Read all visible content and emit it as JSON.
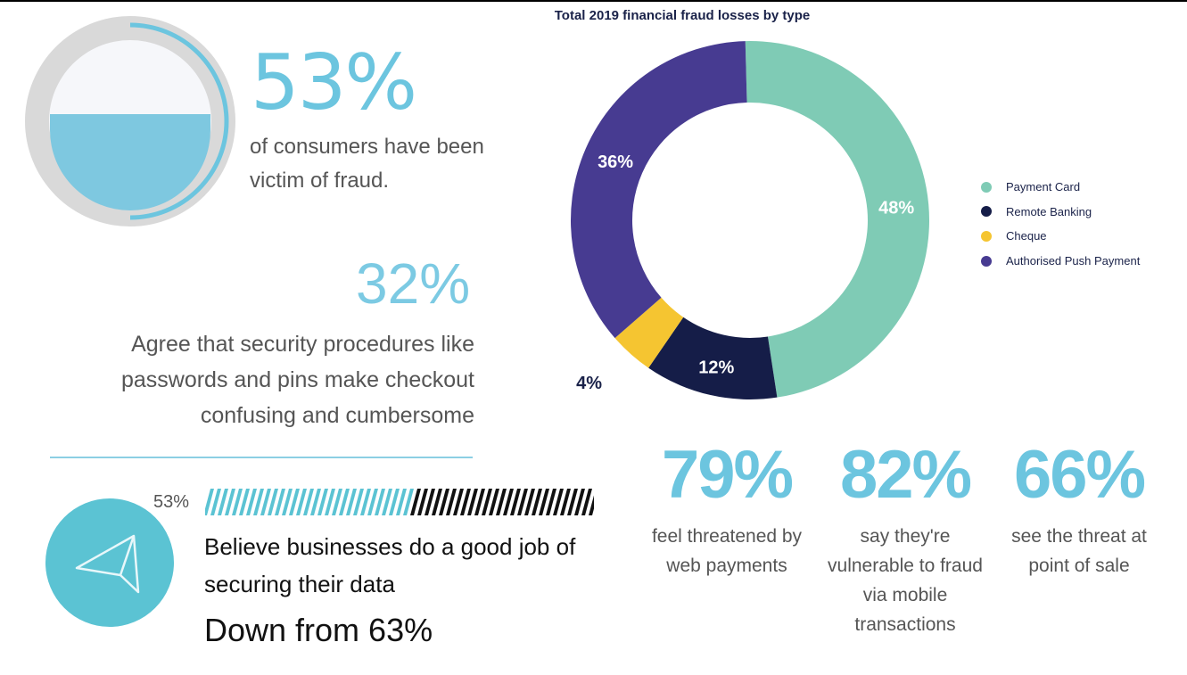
{
  "stat_fraud_victims": {
    "value": "53%",
    "text": "of consumers have been victim of fraud.",
    "gauge_fraction": 0.53
  },
  "stat_security": {
    "value": "32%",
    "text": "Agree that security procedures like passwords and pins make checkout confusing and cumbersome"
  },
  "stat_trust": {
    "bar_label": "53%",
    "bar_fraction": 0.53,
    "text": "Believe businesses do a good job of securing their data",
    "sub": "Down from 63%"
  },
  "chart_data": {
    "type": "pie",
    "title": "Total 2019 financial fraud losses by type",
    "legend_position": "right",
    "labels": [
      "Payment Card",
      "Remote Banking",
      "Cheque",
      "Authorised Push Payment"
    ],
    "values": [
      48,
      12,
      4,
      36
    ],
    "value_labels": [
      "48%",
      "12%",
      "4%",
      "36%"
    ],
    "colors": [
      "#7fcbb5",
      "#151d48",
      "#f5c531",
      "#473b91"
    ]
  },
  "bottom_stats": [
    {
      "value": "79%",
      "text": "feel threatened by web payments"
    },
    {
      "value": "82%",
      "text": "say they're vulnerable to fraud via mobile transactions"
    },
    {
      "value": "66%",
      "text": "see the threat at point of sale"
    }
  ],
  "icons": {
    "gauge": "water-level-gauge-icon",
    "trust": "paper-plane-icon"
  },
  "colors": {
    "accent": "#6cc5df",
    "dark_text": "#1a2249"
  }
}
